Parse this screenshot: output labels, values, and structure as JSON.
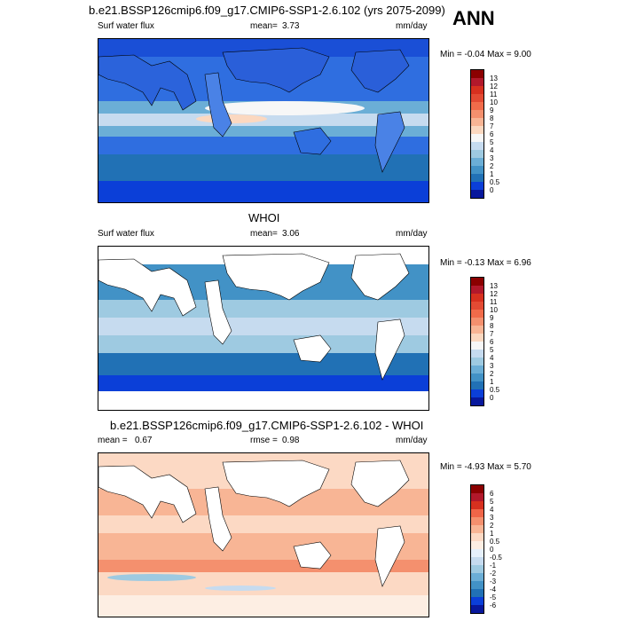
{
  "panel1": {
    "title": "b.e21.BSSP126cmip6.f09_g17.CMIP6-SSP1-2.6.102 (yrs 2075-2099)",
    "variable": "Surf water flux",
    "mean_label": "mean=",
    "mean_value": "3.73",
    "units": "mm/day",
    "minmax": "Min = -0.04 Max =   9.00",
    "colorbar_labels": [
      "13",
      "12",
      "11",
      "10",
      "9",
      "8",
      "7",
      "6",
      "5",
      "4",
      "3",
      "2",
      "1",
      "0.5",
      "0"
    ]
  },
  "season": "ANN",
  "panel2": {
    "title": "WHOI",
    "variable": "Surf water flux",
    "mean_label": "mean=",
    "mean_value": "3.06",
    "units": "mm/day",
    "minmax": "Min = -0.13 Max =   6.96",
    "colorbar_labels": [
      "13",
      "12",
      "11",
      "10",
      "9",
      "8",
      "7",
      "6",
      "5",
      "4",
      "3",
      "2",
      "1",
      "0.5",
      "0"
    ]
  },
  "panel3": {
    "title": "b.e21.BSSP126cmip6.f09_g17.CMIP6-SSP1-2.6.102 - WHOI",
    "mean_label": "mean =",
    "mean_value": "0.67",
    "rmse_label": "rmse =",
    "rmse_value": "0.98",
    "units": "mm/day",
    "minmax": "Min = -4.93 Max =   5.70",
    "colorbar_labels": [
      "6",
      "5",
      "4",
      "3",
      "2",
      "1",
      "0.5",
      "0",
      "-0.5",
      "-1",
      "-2",
      "-3",
      "-4",
      "-5",
      "-6"
    ]
  },
  "colors": {
    "abs_scale": [
      "#8b0000",
      "#b2182b",
      "#d7301f",
      "#e34a33",
      "#f16b4a",
      "#f4906e",
      "#f8b595",
      "#fbd8c0",
      "#f7f7f7",
      "#c6dbef",
      "#9ecae1",
      "#6baed6",
      "#4292c6",
      "#2171b5",
      "#0b3fd8",
      "#08189c"
    ],
    "diff_scale": [
      "#8b0000",
      "#b2182b",
      "#d7301f",
      "#ef6548",
      "#f4906e",
      "#f8b595",
      "#fcd9c4",
      "#fdeee3",
      "#e6f0fb",
      "#c6dbef",
      "#9ecae1",
      "#6baed6",
      "#4292c6",
      "#2171b5",
      "#0b3fd8",
      "#08189c"
    ]
  }
}
